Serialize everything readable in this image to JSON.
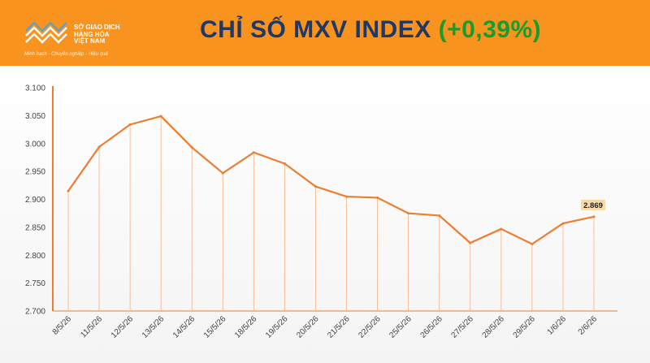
{
  "header": {
    "logo_lines": [
      "SỞ GIAO DỊCH",
      "HÀNG HÓA",
      "VIỆT NAM"
    ],
    "logo_tagline": "Minh bạch - Chuyên nghiệp - Hiệu quả",
    "title_main": "CHỈ SỐ MXV INDEX",
    "title_change": "(+0,39%)",
    "bg_color": "#f7931e",
    "title_color": "#1f3864",
    "change_color": "#1a9b2e"
  },
  "chart_data": {
    "type": "line",
    "title": "CHỈ SỐ MXV INDEX (+0,39%)",
    "xlabel": "",
    "ylabel": "",
    "categories": [
      "8/5/26",
      "11/5/26",
      "12/5/26",
      "13/5/26",
      "14/5/26",
      "15/5/26",
      "18/5/26",
      "19/5/26",
      "20/5/26",
      "21/5/26",
      "22/5/26",
      "25/5/26",
      "26/5/26",
      "27/5/26",
      "28/5/26",
      "29/5/26",
      "1/6/26",
      "2/6/26"
    ],
    "series": [
      {
        "values": [
          2915,
          2994,
          3034,
          3049,
          2993,
          2947,
          2984,
          2964,
          2923,
          2905,
          2903,
          2875,
          2871,
          2822,
          2847,
          2820,
          2857,
          2869
        ],
        "color": "#ed7d31"
      }
    ],
    "ylim": [
      2700,
      3100
    ],
    "yticks": [
      "2.700",
      "2.750",
      "2.800",
      "2.850",
      "2.900",
      "2.950",
      "3.000",
      "3.050",
      "3.100"
    ],
    "last_label": "2.869",
    "grid": false,
    "legend": "none"
  }
}
